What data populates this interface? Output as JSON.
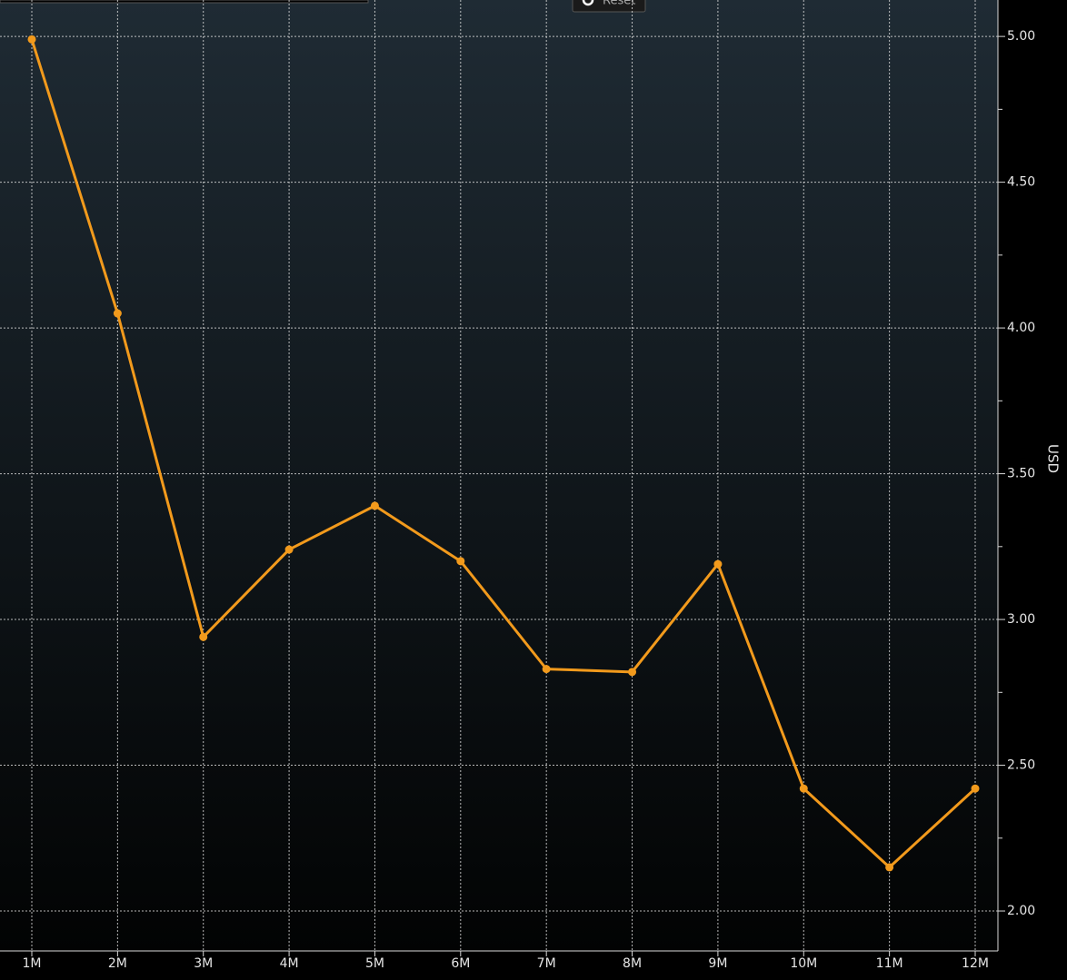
{
  "toolbar": {
    "reset": "Reset"
  },
  "chart_data": {
    "type": "line",
    "y_label": "USD",
    "categories": [
      "1M",
      "2M",
      "3M",
      "4M",
      "5M",
      "6M",
      "7M",
      "8M",
      "9M",
      "10M",
      "11M",
      "12M"
    ],
    "series": [
      {
        "name": "USD",
        "color": "#f29a1c",
        "values": [
          4.99,
          4.05,
          2.94,
          3.24,
          3.39,
          3.2,
          2.83,
          2.82,
          3.19,
          2.42,
          2.15,
          2.42
        ]
      }
    ],
    "ylim": [
      1.863,
      5.125
    ],
    "yticks": [
      {
        "value": 2,
        "label": "2.00"
      },
      {
        "value": 2.5,
        "label": "2.50"
      },
      {
        "value": 3,
        "label": "3.00"
      },
      {
        "value": 3.5,
        "label": "3.50"
      },
      {
        "value": 4,
        "label": "4.00"
      },
      {
        "value": 4.5,
        "label": "4.50"
      },
      {
        "value": 5,
        "label": "5.00"
      }
    ],
    "minor_yticks": [
      2.25,
      2.75,
      3.25,
      3.75,
      4.25,
      4.75
    ],
    "grid": true
  }
}
